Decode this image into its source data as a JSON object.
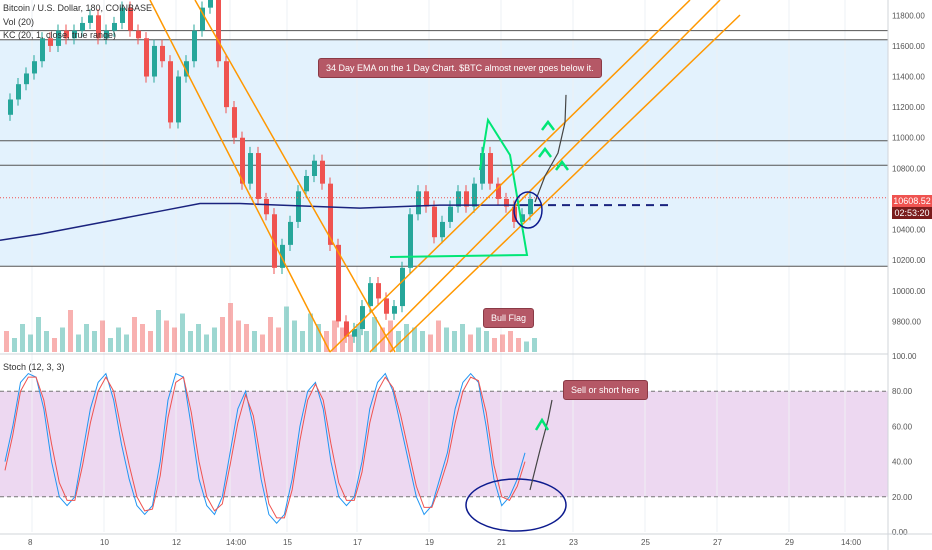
{
  "header": {
    "symbol_line": "Bitcoin / U.S. Dollar, 180, COINBASE",
    "volume_line": "Vol (20)",
    "kc_line": "KC (20, 1, close, true range)",
    "stoch_line": "Stoch (12, 3, 3)"
  },
  "annotations": {
    "ema_note": "34 Day EMA on the 1 Day Chart. $BTC almost never goes below it.",
    "bull_flag": "Bull Flag",
    "sell_note": "Sell or short here"
  },
  "price_axis": {
    "current_price": "10608.52",
    "countdown": "02:53:20",
    "ticks": [
      "11800.00",
      "11600.00",
      "11400.00",
      "11200.00",
      "11000.00",
      "10800.00",
      "10600.00",
      "10400.00",
      "10200.00",
      "10000.00",
      "9800.00"
    ]
  },
  "stoch_axis": {
    "ticks": [
      "100.00",
      "80.00",
      "60.00",
      "40.00",
      "20.00",
      "0.00"
    ]
  },
  "time_axis": {
    "ticks": [
      "8",
      "10",
      "12",
      "14:00",
      "15",
      "17",
      "19",
      "21",
      "23",
      "25",
      "27",
      "29",
      "14:00"
    ]
  },
  "colors": {
    "up_candle": "#26a69a",
    "down_candle": "#ef5350",
    "ema": "#1a237e",
    "channel": "#ff9800",
    "flag": "#00e676",
    "drawing": "#0d1b8e",
    "stoch_k": "#2196f3",
    "stoch_d": "#ef5350",
    "stoch_band": "#e1bee7",
    "kc_fill": "#e3f2fd",
    "horizontal_levels": "#555555"
  },
  "chart_data": [
    {
      "type": "candlestick",
      "title": "Bitcoin / U.S. Dollar, 180, COINBASE",
      "ylim": [
        9600,
        11900
      ],
      "x_range": [
        "8",
        "14:00"
      ],
      "horizontal_levels": [
        11700,
        11640,
        10980,
        10820,
        10160
      ],
      "ema_34_daily": [
        [
          0,
          10330
        ],
        [
          40,
          10370
        ],
        [
          80,
          10420
        ],
        [
          120,
          10470
        ],
        [
          160,
          10520
        ],
        [
          200,
          10570
        ],
        [
          240,
          10570
        ],
        [
          280,
          10560
        ],
        [
          320,
          10550
        ],
        [
          360,
          10540
        ],
        [
          400,
          10550
        ],
        [
          440,
          10560
        ],
        [
          480,
          10560
        ],
        [
          520,
          10560
        ]
      ],
      "ema_projection": [
        [
          520,
          10560
        ],
        [
          670,
          10560
        ]
      ],
      "price_path": [
        [
          0,
          11150
        ],
        [
          8,
          11250
        ],
        [
          16,
          11350
        ],
        [
          24,
          11420
        ],
        [
          32,
          11500
        ],
        [
          40,
          11650
        ],
        [
          48,
          11600
        ],
        [
          56,
          11700
        ],
        [
          64,
          11650
        ],
        [
          72,
          11700
        ],
        [
          80,
          11750
        ],
        [
          88,
          11800
        ],
        [
          96,
          11650
        ],
        [
          104,
          11700
        ],
        [
          112,
          11750
        ],
        [
          120,
          11850
        ],
        [
          128,
          11700
        ],
        [
          136,
          11650
        ],
        [
          144,
          11400
        ],
        [
          152,
          11600
        ],
        [
          160,
          11500
        ],
        [
          168,
          11100
        ],
        [
          176,
          11400
        ],
        [
          184,
          11500
        ],
        [
          192,
          11700
        ],
        [
          200,
          11850
        ],
        [
          208,
          11900
        ],
        [
          216,
          11500
        ],
        [
          224,
          11200
        ],
        [
          232,
          11000
        ],
        [
          240,
          10700
        ],
        [
          248,
          10900
        ],
        [
          256,
          10600
        ],
        [
          264,
          10500
        ],
        [
          272,
          10150
        ],
        [
          280,
          10300
        ],
        [
          288,
          10450
        ],
        [
          296,
          10650
        ],
        [
          304,
          10750
        ],
        [
          312,
          10850
        ],
        [
          320,
          10700
        ],
        [
          328,
          10300
        ],
        [
          336,
          9800
        ],
        [
          344,
          9700
        ],
        [
          352,
          9750
        ],
        [
          360,
          9900
        ],
        [
          368,
          10050
        ],
        [
          376,
          9950
        ],
        [
          384,
          9850
        ],
        [
          392,
          9900
        ],
        [
          400,
          10150
        ],
        [
          408,
          10500
        ],
        [
          416,
          10650
        ],
        [
          424,
          10550
        ],
        [
          432,
          10350
        ],
        [
          440,
          10450
        ],
        [
          448,
          10550
        ],
        [
          456,
          10650
        ],
        [
          464,
          10550
        ],
        [
          472,
          10700
        ],
        [
          480,
          10900
        ],
        [
          488,
          10700
        ],
        [
          496,
          10600
        ],
        [
          504,
          10550
        ],
        [
          512,
          10450
        ],
        [
          520,
          10500
        ],
        [
          528,
          10600
        ]
      ],
      "projected_path": [
        [
          535,
          10580
        ],
        [
          545,
          10750
        ],
        [
          558,
          10900
        ],
        [
          565,
          11100
        ],
        [
          566,
          11280
        ]
      ],
      "volume": [
        30,
        20,
        40,
        25,
        50,
        30,
        20,
        35,
        60,
        25,
        40,
        30,
        45,
        20,
        35,
        25,
        50,
        40,
        30,
        60,
        45,
        35,
        55,
        30,
        40,
        25,
        35,
        50,
        70,
        45,
        40,
        30,
        25,
        50,
        35,
        65,
        45,
        30,
        55,
        40,
        30,
        45,
        35,
        25,
        40,
        30,
        50,
        35,
        45,
        30,
        40,
        35,
        30,
        25,
        45,
        35,
        30,
        40,
        25,
        35,
        30,
        20,
        25,
        30,
        20,
        15,
        20
      ]
    },
    {
      "type": "line",
      "title": "Stoch (12, 3, 3)",
      "ylim": [
        0,
        100
      ],
      "bands": [
        20,
        80
      ],
      "series": [
        {
          "values": [
            40,
            60,
            85,
            90,
            88,
            70,
            40,
            20,
            15,
            20,
            45,
            70,
            85,
            90,
            75,
            50,
            30,
            15,
            10,
            15,
            40,
            75,
            90,
            88,
            60,
            30,
            15,
            10,
            20,
            45,
            70,
            80,
            60,
            30,
            10,
            5,
            10,
            30,
            60,
            80,
            85,
            70,
            40,
            20,
            15,
            20,
            40,
            70,
            85,
            90,
            80,
            60,
            40,
            20,
            10,
            15,
            30,
            45,
            70,
            85,
            90,
            85,
            60,
            30,
            15,
            20,
            30,
            45
          ]
        },
        {
          "values": [
            35,
            55,
            80,
            88,
            88,
            75,
            50,
            28,
            18,
            18,
            38,
            62,
            80,
            88,
            80,
            58,
            38,
            20,
            12,
            13,
            32,
            65,
            85,
            88,
            68,
            40,
            20,
            12,
            16,
            38,
            62,
            78,
            66,
            40,
            16,
            8,
            8,
            24,
            52,
            75,
            84,
            75,
            50,
            28,
            18,
            18,
            34,
            62,
            80,
            88,
            82,
            66,
            46,
            26,
            14,
            14,
            26,
            40,
            62,
            80,
            88,
            86,
            68,
            38,
            20,
            18,
            26,
            40
          ]
        }
      ]
    }
  ]
}
